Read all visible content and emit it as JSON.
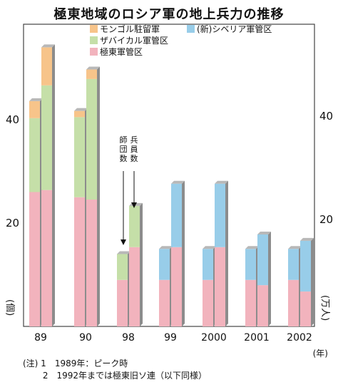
{
  "chart_data": {
    "type": "bar",
    "title": "極東地域のロシア軍の地上兵力の推移",
    "categories": [
      "89",
      "90",
      "98",
      "99",
      "2000",
      "2001",
      "2002"
    ],
    "left_axis_ticks": [
      "40",
      "20"
    ],
    "right_axis_ticks": [
      "40",
      "20"
    ],
    "left_unit": "(個)",
    "right_unit": "(万人)",
    "x_unit": "(年)",
    "left_series_label": "師団数",
    "right_series_label": "兵員数",
    "series": [
      {
        "name": "モンゴル駐留軍",
        "color": "#f7c48a"
      },
      {
        "name": "ザバイカル軍管区",
        "color": "#c5dfa8"
      },
      {
        "name": "極東軍管区",
        "color": "#f2b3bd"
      },
      {
        "name": "(新)シベリア軍管区",
        "color": "#98cde9"
      }
    ],
    "divisions": [
      {
        "year": "89",
        "極東軍管区": 26,
        "ザバイカル軍管区": 14.3,
        "モンゴル駐留軍": 3.3,
        "シベリア軍管区": 0
      },
      {
        "year": "90",
        "極東軍管区": 25,
        "ザバイカル軍管区": 15.5,
        "モンゴル駐留軍": 1.2,
        "シベリア軍管区": 0
      },
      {
        "year": "98",
        "極東軍管区": 9,
        "ザバイカル軍管区": 5,
        "モンゴル駐留軍": 0,
        "シベリア軍管区": 0
      },
      {
        "year": "99",
        "極東軍管区": 9,
        "ザバイカル軍管区": 0,
        "モンゴル駐留軍": 0,
        "シベリア軍管区": 6
      },
      {
        "year": "2000",
        "極東軍管区": 9,
        "ザバイカル軍管区": 0,
        "モンゴル駐留軍": 0,
        "シベリア軍管区": 6
      },
      {
        "year": "2001",
        "極東軍管区": 9,
        "ザバイカル軍管区": 0,
        "モンゴル駐留軍": 0,
        "シベリア軍管区": 6
      },
      {
        "year": "2002",
        "極東軍管区": 9,
        "ザバイカル軍管区": 0,
        "モンゴル駐留軍": 0,
        "シベリア軍管区": 6
      }
    ],
    "troops": [
      {
        "year": "89",
        "極東軍管区": 21.5,
        "ザバイカル軍管区": 16.5,
        "モンゴル駐留軍": 6,
        "シベリア軍管区": 0
      },
      {
        "year": "90",
        "極東軍管区": 20,
        "ザバイカル軍管区": 19,
        "モンゴル駐留軍": 1.5,
        "シベリア軍管区": 0
      },
      {
        "year": "98",
        "極東軍管区": 12.5,
        "ザバイカル軍管区": 6.5,
        "モンゴル駐留軍": 0,
        "シベリア軍管区": 0
      },
      {
        "year": "99",
        "極東軍管区": 12.5,
        "ザバイカル軍管区": 0,
        "モンゴル駐留軍": 0,
        "シベリア軍管区": 10
      },
      {
        "year": "2000",
        "極東軍管区": 12.5,
        "ザバイカル軍管区": 0,
        "モンゴル駐留軍": 0,
        "シベリア軍管区": 10
      },
      {
        "year": "2001",
        "極東軍管区": 6.5,
        "ザバイカル軍管区": 0,
        "モンゴル駐留軍": 0,
        "シベリア軍管区": 8
      },
      {
        "year": "2002",
        "極東軍管区": 5.5,
        "ザバイカル軍管区": 0,
        "モンゴル駐留軍": 0,
        "シベリア軍管区": 8
      }
    ],
    "left_ylim": [
      0,
      60
    ],
    "right_ylim": [
      0,
      60
    ],
    "legend_placement": "top-center",
    "grid": false
  },
  "notes": {
    "line1": "(注) 1　1989年：ピーク時",
    "line2": "　　 2　1992年までは極東旧ソ連（以下同様）"
  }
}
